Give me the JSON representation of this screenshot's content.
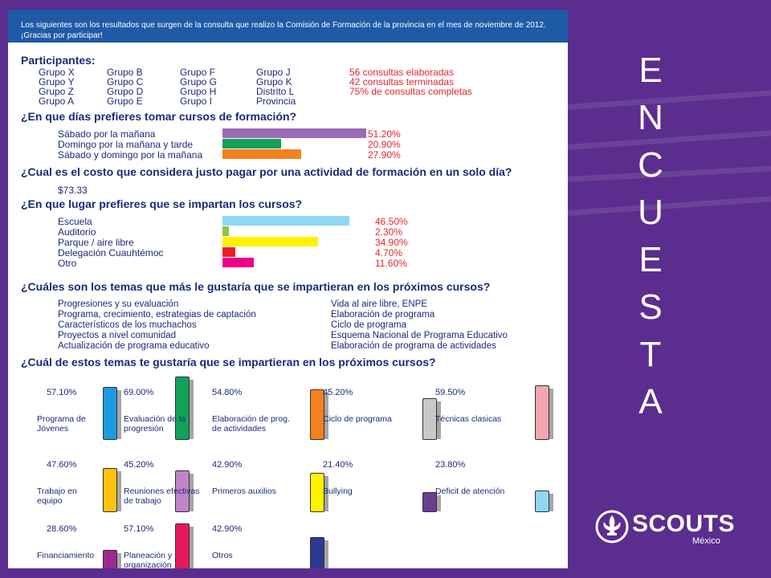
{
  "header": {
    "intro": "Los siguientes son los resultados que surgen de la consulta que realizo la Comisión de Formación de la provincia en el mes de noviembre de 2012. ¡Gracias por participar!"
  },
  "participantes": {
    "title": "Participantes:",
    "grupos": [
      [
        "Grupo X",
        "Grupo Y",
        "Grupo Z",
        "Grupo A"
      ],
      [
        "Grupo B",
        "Grupo C",
        "Grupo D",
        "Grupo E"
      ],
      [
        "Grupo F",
        "Grupo G",
        "Grupo H",
        "Grupo I"
      ],
      [
        "Grupo J",
        "Grupo K",
        "Distrito L",
        "Provincia"
      ]
    ],
    "stats": [
      "56 consultas elaboradas",
      "42 consultas terminadas",
      "75% de consultas completas"
    ]
  },
  "q1": {
    "title": "¿En que días prefieres tomar cursos de formación?",
    "items": [
      {
        "label": "Sábado por la mañana",
        "pct": "51.20%",
        "value": 51.2,
        "color": "#9b6bb5"
      },
      {
        "label": "Domingo por la mañana y tarde",
        "pct": "20.90%",
        "value": 20.9,
        "color": "#13a15a"
      },
      {
        "label": "Sábado y domingo por la mañana",
        "pct": "27.90%",
        "value": 27.9,
        "color": "#f4821f"
      }
    ]
  },
  "q2": {
    "title": "¿Cual es el costo que considera justo pagar por una actividad de formación en un solo día?",
    "answer": "$73.33"
  },
  "q3": {
    "title": "¿En que lugar prefieres que se impartan los cursos?",
    "items": [
      {
        "label": "Escuela",
        "pct": "46.50%",
        "value": 46.5,
        "color": "#8ed8f5"
      },
      {
        "label": "Auditorio",
        "pct": "2.30%",
        "value": 2.3,
        "color": "#8dc63f"
      },
      {
        "label": "Parque / aire libre",
        "pct": "34.90%",
        "value": 34.9,
        "color": "#fff200"
      },
      {
        "label": "Delegación Cuauhtémoc",
        "pct": "4.70%",
        "value": 4.7,
        "color": "#ed1c24"
      },
      {
        "label": "Otro",
        "pct": "11.60%",
        "value": 11.6,
        "color": "#ec008c"
      }
    ]
  },
  "q4": {
    "title": "¿Cuáles son los temas que más le gustaría que se impartieran en los próximos cursos?",
    "left": [
      "Progresiones y su evaluación",
      "Programa, crecimiento, estrategias de captación",
      "Característicos de los muchachos",
      "Proyectos a nivel comunidad",
      "Actualización de programa educativo"
    ],
    "right": [
      "Vida al aire libre, ENPE",
      "Elaboración de programa",
      "Ciclo de programa",
      "Esquema Nacional de Programa Educativo",
      "Elaboración de programa de actividades"
    ]
  },
  "q5": {
    "title": "¿Cuál de estos temas te gustaría que se impartieran en los próximos cursos?",
    "items": [
      {
        "pct": "57.10%",
        "value": 57.1,
        "label": "Programa de Jóvenes",
        "color": "#1e9be0"
      },
      {
        "pct": "69.00%",
        "value": 69.0,
        "label": "Evaluación de la progresión",
        "color": "#13a15a"
      },
      {
        "pct": "54.80%",
        "value": 54.8,
        "label": "Elaboración de prog. de actividades",
        "color": "#f4821f"
      },
      {
        "pct": "45.20%",
        "value": 45.2,
        "label": "Ciclo de programa",
        "color": "#c8c8c8"
      },
      {
        "pct": "59.50%",
        "value": 59.5,
        "label": "Técnicas clasicas",
        "color": "#f4a6b0"
      },
      {
        "pct": "47.60%",
        "value": 47.6,
        "label": "Trabajo en equipo",
        "color": "#ffc20e"
      },
      {
        "pct": "45.20%",
        "value": 45.2,
        "label": "Reuniones efectivas de trabajo",
        "color": "#c084c8"
      },
      {
        "pct": "42.90%",
        "value": 42.9,
        "label": "Primeros auxilios",
        "color": "#fff200"
      },
      {
        "pct": "21.40%",
        "value": 21.4,
        "label": "Bullying",
        "color": "#6a3d8f"
      },
      {
        "pct": "23.80%",
        "value": 23.8,
        "label": "Deficit de atención",
        "color": "#8ed8f5"
      },
      {
        "pct": "28.60%",
        "value": 28.6,
        "label": "Financiamiento",
        "color": "#9b2a8f"
      },
      {
        "pct": "57.10%",
        "value": 57.1,
        "label": "Planeación y organización",
        "color": "#e8175d"
      },
      {
        "pct": "42.90%",
        "value": 42.9,
        "label": "Otros",
        "color": "#2b3a8f"
      }
    ]
  },
  "side": {
    "word": "ENCUESTA",
    "letters": [
      "E",
      "N",
      "C",
      "U",
      "E",
      "S",
      "T",
      "A"
    ]
  },
  "logo": {
    "brand": "SCOUTS",
    "sub": "México"
  }
}
